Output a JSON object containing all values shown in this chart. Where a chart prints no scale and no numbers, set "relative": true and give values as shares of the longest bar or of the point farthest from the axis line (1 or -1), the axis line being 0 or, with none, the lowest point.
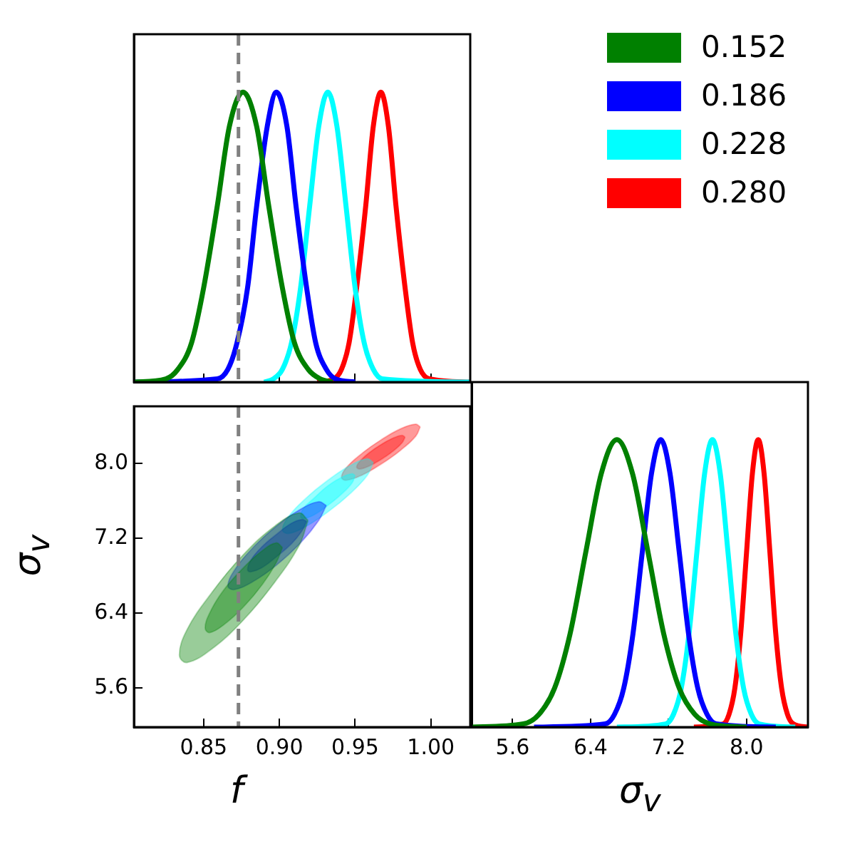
{
  "chart_data": [
    {
      "type": "line",
      "relative": true,
      "xlim": [
        0.804,
        1.026
      ],
      "xticks": [
        {
          "value": 0.85,
          "label": null
        },
        {
          "value": 0.9,
          "label": null
        },
        {
          "value": 0.95,
          "label": null
        },
        {
          "value": 1.0,
          "label": null
        }
      ],
      "tick_labels": false,
      "legend": "right",
      "ref_lines": [
        {
          "axis": "x",
          "value": 0.873,
          "color": "#808080",
          "line_style": "dashed"
        }
      ],
      "series": [
        {
          "name": "0.152",
          "color": "#008000",
          "x": [
            0.804,
            0.825,
            0.833,
            0.842,
            0.85,
            0.859,
            0.867,
            0.876,
            0.885,
            0.893,
            0.902,
            0.91,
            0.919,
            0.927,
            0.935
          ],
          "values": [
            0,
            0.011,
            0.044,
            0.135,
            0.325,
            0.607,
            0.882,
            1,
            0.882,
            0.607,
            0.325,
            0.135,
            0.044,
            0.011,
            0
          ]
        },
        {
          "name": "0.186",
          "color": "#0000ff",
          "x": [
            0.804,
            0.859,
            0.866,
            0.872,
            0.879,
            0.885,
            0.892,
            0.898,
            0.905,
            0.911,
            0.918,
            0.924,
            0.931,
            0.937,
            0.95
          ],
          "values": [
            0,
            0.011,
            0.044,
            0.135,
            0.325,
            0.607,
            0.882,
            1,
            0.882,
            0.607,
            0.325,
            0.135,
            0.044,
            0.011,
            0
          ]
        },
        {
          "name": "0.228",
          "color": "#00ffff",
          "x": [
            0.89,
            0.896,
            0.902,
            0.908,
            0.914,
            0.92,
            0.926,
            0.932,
            0.938,
            0.944,
            0.95,
            0.956,
            0.962,
            0.968,
            1.026
          ],
          "values": [
            0,
            0.011,
            0.044,
            0.135,
            0.325,
            0.607,
            0.882,
            1,
            0.882,
            0.607,
            0.325,
            0.135,
            0.044,
            0.011,
            0
          ]
        },
        {
          "name": "0.280",
          "color": "#ff0000",
          "x": [
            0.925,
            0.936,
            0.941,
            0.946,
            0.951,
            0.957,
            0.962,
            0.967,
            0.972,
            0.977,
            0.983,
            0.988,
            0.993,
            0.999,
            1.026
          ],
          "values": [
            0,
            0.011,
            0.044,
            0.135,
            0.325,
            0.607,
            0.882,
            1,
            0.882,
            0.607,
            0.325,
            0.135,
            0.044,
            0.011,
            0
          ]
        }
      ]
    },
    {
      "type": "area",
      "xlabel": "f",
      "ylabel": "σ$_{v}$",
      "xlim": [
        0.804,
        1.026
      ],
      "xticks": [
        {
          "value": 0.85,
          "label": "0.85"
        },
        {
          "value": 0.9,
          "label": "0.90"
        },
        {
          "value": 0.95,
          "label": "0.95"
        },
        {
          "value": 1.0,
          "label": "1.00"
        }
      ],
      "ylim": [
        5.18,
        8.61
      ],
      "yticks": [
        {
          "value": 5.6,
          "label": "5.6"
        },
        {
          "value": 6.4,
          "label": "6.4"
        },
        {
          "value": 7.2,
          "label": "7.2"
        },
        {
          "value": 8.0,
          "label": "8.0"
        }
      ],
      "ref_lines": [
        {
          "axis": "x",
          "value": 0.873,
          "color": "#808080",
          "line_style": "dashed"
        }
      ],
      "series": [
        {
          "color": "#008000",
          "x": [
            0.919,
            0.913,
            0.897,
            0.876,
            0.855,
            0.839,
            0.834,
            0.839,
            0.855,
            0.876,
            0.897,
            0.913
          ],
          "values": [
            7.39,
            7.47,
            7.33,
            7.02,
            6.61,
            6.22,
            5.95,
            5.87,
            6.01,
            6.32,
            6.73,
            7.12
          ]
        },
        {
          "color": "#008000",
          "x": [
            0.902,
            0.898,
            0.889,
            0.876,
            0.863,
            0.854,
            0.851,
            0.854,
            0.863,
            0.876,
            0.889,
            0.898
          ],
          "values": [
            7.1,
            7.15,
            7.07,
            6.88,
            6.64,
            6.4,
            6.24,
            6.19,
            6.27,
            6.46,
            6.71,
            6.94
          ]
        },
        {
          "color": "#0000ff",
          "x": [
            0.931,
            0.926,
            0.914,
            0.898,
            0.882,
            0.87,
            0.866,
            0.87,
            0.882,
            0.898,
            0.914,
            0.926
          ],
          "values": [
            7.55,
            7.59,
            7.51,
            7.33,
            7.09,
            6.85,
            6.69,
            6.65,
            6.73,
            6.91,
            7.15,
            7.39
          ]
        },
        {
          "color": "#0000ff",
          "x": [
            0.918,
            0.915,
            0.908,
            0.898,
            0.888,
            0.881,
            0.879,
            0.881,
            0.888,
            0.898,
            0.908,
            0.915
          ],
          "values": [
            7.38,
            7.4,
            7.36,
            7.24,
            7.1,
            6.96,
            6.86,
            6.84,
            6.88,
            7.0,
            7.14,
            7.28
          ]
        },
        {
          "color": "#00ffff",
          "x": [
            0.962,
            0.958,
            0.947,
            0.932,
            0.917,
            0.906,
            0.902,
            0.906,
            0.917,
            0.932,
            0.947,
            0.958
          ],
          "values": [
            8.01,
            8.05,
            7.98,
            7.82,
            7.62,
            7.43,
            7.29,
            7.25,
            7.32,
            7.48,
            7.68,
            7.87
          ]
        },
        {
          "color": "#00ffff",
          "x": [
            0.95,
            0.948,
            0.941,
            0.932,
            0.923,
            0.916,
            0.914,
            0.916,
            0.923,
            0.932,
            0.941,
            0.948
          ],
          "values": [
            7.87,
            7.89,
            7.85,
            7.76,
            7.63,
            7.52,
            7.43,
            7.41,
            7.45,
            7.55,
            7.67,
            7.79
          ]
        },
        {
          "color": "#ff0000",
          "x": [
            0.993,
            0.99,
            0.98,
            0.967,
            0.954,
            0.944,
            0.941,
            0.944,
            0.954,
            0.967,
            0.98,
            0.99
          ],
          "values": [
            8.39,
            8.42,
            8.37,
            8.25,
            8.1,
            7.95,
            7.85,
            7.82,
            7.87,
            7.99,
            8.14,
            8.29
          ]
        },
        {
          "color": "#ff0000",
          "x": [
            0.983,
            0.981,
            0.975,
            0.967,
            0.959,
            0.953,
            0.951,
            0.953,
            0.959,
            0.967,
            0.975,
            0.981
          ],
          "values": [
            8.28,
            8.3,
            8.27,
            8.2,
            8.11,
            8.02,
            7.96,
            7.94,
            7.97,
            8.04,
            8.13,
            8.22
          ]
        }
      ]
    },
    {
      "type": "line",
      "relative": true,
      "xlabel": "σ$_{v}$",
      "xlim": [
        5.18,
        8.63
      ],
      "xticks": [
        {
          "value": 5.6,
          "label": "5.6"
        },
        {
          "value": 6.4,
          "label": "6.4"
        },
        {
          "value": 7.2,
          "label": "7.2"
        },
        {
          "value": 8.0,
          "label": "8.0"
        }
      ],
      "tick_labels": "x",
      "series": [
        {
          "color": "#008000",
          "x": [
            5.18,
            5.71,
            5.87,
            6.03,
            6.19,
            6.35,
            6.51,
            6.67,
            6.83,
            6.99,
            7.15,
            7.31,
            7.47,
            7.63,
            8.0
          ],
          "values": [
            0,
            0.011,
            0.044,
            0.135,
            0.325,
            0.607,
            0.882,
            1,
            0.882,
            0.607,
            0.325,
            0.135,
            0.044,
            0.011,
            0
          ]
        },
        {
          "color": "#0000ff",
          "x": [
            5.82,
            6.55,
            6.645,
            6.74,
            6.835,
            6.93,
            7.025,
            7.12,
            7.215,
            7.31,
            7.405,
            7.5,
            7.595,
            7.69,
            8.3
          ],
          "values": [
            0,
            0.011,
            0.044,
            0.135,
            0.325,
            0.607,
            0.882,
            1,
            0.882,
            0.607,
            0.325,
            0.135,
            0.044,
            0.011,
            0
          ]
        },
        {
          "color": "#00ffff",
          "x": [
            6.67,
            7.17,
            7.25,
            7.33,
            7.41,
            7.49,
            7.57,
            7.65,
            7.73,
            7.81,
            7.89,
            7.97,
            8.05,
            8.13,
            8.5
          ],
          "values": [
            0,
            0.011,
            0.044,
            0.135,
            0.325,
            0.607,
            0.882,
            1,
            0.882,
            0.607,
            0.325,
            0.135,
            0.044,
            0.011,
            0
          ]
        },
        {
          "color": "#ff0000",
          "x": [
            7.46,
            7.76,
            7.82,
            7.88,
            7.94,
            8.0,
            8.06,
            8.12,
            8.18,
            8.24,
            8.3,
            8.36,
            8.42,
            8.48,
            8.63
          ],
          "values": [
            0,
            0.011,
            0.044,
            0.135,
            0.325,
            0.607,
            0.882,
            1,
            0.882,
            0.607,
            0.325,
            0.135,
            0.044,
            0.011,
            0
          ]
        }
      ]
    }
  ]
}
